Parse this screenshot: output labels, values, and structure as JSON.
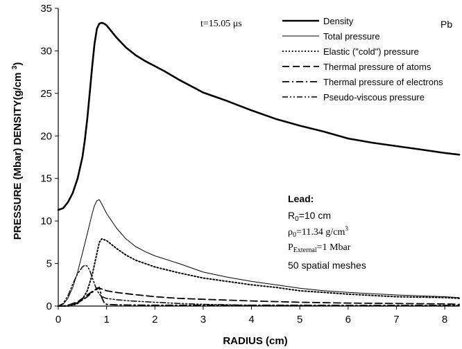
{
  "chart_data": {
    "type": "line",
    "xlabel": "RADIUS (cm)",
    "ylabel": "PRESSURE (Mbar) DENSITY(g/cm³)",
    "xlim": [
      0,
      8.3
    ],
    "ylim": [
      0,
      35
    ],
    "xticks": [
      0,
      1,
      2,
      3,
      4,
      5,
      6,
      7,
      8
    ],
    "yticks": [
      0,
      5,
      10,
      15,
      20,
      25,
      30,
      35
    ],
    "grid": false,
    "legend_position": "top-right",
    "series": [
      {
        "name": "Density",
        "style": "solid-thick",
        "x": [
          0,
          0.1,
          0.2,
          0.3,
          0.4,
          0.5,
          0.55,
          0.6,
          0.65,
          0.7,
          0.75,
          0.8,
          0.85,
          0.9,
          0.95,
          1.0,
          1.1,
          1.2,
          1.4,
          1.6,
          1.8,
          2.0,
          2.2,
          2.5,
          3.0,
          3.5,
          4.0,
          4.5,
          5.0,
          5.5,
          6.0,
          6.5,
          7.0,
          7.5,
          8.0,
          8.3
        ],
        "y": [
          11.3,
          11.5,
          12.2,
          13.3,
          15.0,
          17.5,
          19.5,
          22.0,
          25.0,
          28.0,
          30.8,
          32.6,
          33.2,
          33.3,
          33.2,
          33.0,
          32.3,
          31.6,
          30.4,
          29.5,
          28.8,
          28.2,
          27.6,
          26.6,
          25.1,
          24.1,
          23.0,
          22.0,
          21.2,
          20.5,
          19.7,
          19.2,
          18.8,
          18.4,
          18.0,
          17.8
        ]
      },
      {
        "name": "Total pressure",
        "style": "solid-thin",
        "x": [
          0,
          0.1,
          0.2,
          0.3,
          0.4,
          0.5,
          0.6,
          0.7,
          0.75,
          0.8,
          0.85,
          0.9,
          1.0,
          1.2,
          1.4,
          1.6,
          1.8,
          2.0,
          2.5,
          3.0,
          3.5,
          4.0,
          4.5,
          5.0,
          5.5,
          6.0,
          7.0,
          8.0,
          8.3
        ],
        "y": [
          0,
          0.2,
          0.9,
          2.2,
          4.0,
          6.2,
          8.5,
          10.8,
          11.8,
          12.4,
          12.5,
          12.0,
          10.9,
          9.2,
          7.9,
          7.0,
          6.4,
          5.9,
          5.0,
          4.0,
          3.4,
          2.9,
          2.5,
          2.1,
          1.8,
          1.6,
          1.3,
          1.1,
          1.0
        ]
      },
      {
        "name": "Elastic (\"cold\") pressure",
        "style": "dotted",
        "x": [
          0,
          0.1,
          0.2,
          0.3,
          0.4,
          0.5,
          0.6,
          0.7,
          0.8,
          0.85,
          0.9,
          1.0,
          1.2,
          1.4,
          1.6,
          1.8,
          2.0,
          2.5,
          3.0,
          3.5,
          4.0,
          4.5,
          5.0,
          5.5,
          6.0,
          7.0,
          8.0,
          8.3
        ],
        "y": [
          0,
          0,
          0,
          0.1,
          0.3,
          0.8,
          1.8,
          3.6,
          6.2,
          7.5,
          7.9,
          7.7,
          6.8,
          6.0,
          5.4,
          5.0,
          4.6,
          3.9,
          3.3,
          2.9,
          2.5,
          2.2,
          1.8,
          1.6,
          1.4,
          1.1,
          1.0,
          0.9
        ]
      },
      {
        "name": "Thermal pressure of atoms",
        "style": "dashed",
        "x": [
          0,
          0.1,
          0.2,
          0.3,
          0.4,
          0.5,
          0.6,
          0.7,
          0.8,
          0.85,
          0.9,
          1.0,
          1.2,
          1.5,
          2.0,
          2.5,
          3.0,
          4.0,
          5.0,
          6.0,
          7.0,
          8.0,
          8.3
        ],
        "y": [
          0,
          0,
          0.1,
          0.3,
          0.5,
          0.9,
          1.3,
          1.7,
          2.0,
          2.1,
          2.0,
          1.8,
          1.6,
          1.4,
          1.1,
          0.9,
          0.8,
          0.6,
          0.45,
          0.35,
          0.3,
          0.25,
          0.2
        ]
      },
      {
        "name": "Thermal pressure of electrons",
        "style": "dash-dot",
        "x": [
          0,
          0.1,
          0.2,
          0.3,
          0.4,
          0.5,
          0.6,
          0.7,
          0.8,
          0.85,
          0.9,
          0.95,
          1.0,
          1.2,
          1.5,
          2.0,
          3.0,
          4.0,
          5.0,
          6.0,
          7.0,
          8.0,
          8.3
        ],
        "y": [
          0,
          0,
          0.1,
          0.2,
          0.4,
          0.7,
          1.1,
          1.6,
          2.1,
          2.2,
          1.0,
          0.4,
          0.2,
          0.15,
          0.12,
          0.1,
          0.1,
          0.1,
          0.1,
          0.08,
          0.08,
          0.08,
          0.08
        ]
      },
      {
        "name": "Pseudo-viscous pressure",
        "style": "dash-dot-dot",
        "x": [
          0,
          0.1,
          0.2,
          0.3,
          0.4,
          0.5,
          0.55,
          0.6,
          0.65,
          0.7,
          0.75,
          0.8,
          0.85,
          0.9,
          1.0,
          1.2,
          1.5,
          2.0,
          2.5,
          3.0,
          4.0,
          5.0,
          6.0,
          8.0,
          8.3
        ],
        "y": [
          0,
          0.3,
          1.2,
          2.6,
          3.8,
          4.6,
          4.8,
          4.7,
          4.2,
          3.4,
          2.6,
          1.9,
          1.4,
          1.1,
          0.9,
          0.75,
          0.6,
          0.45,
          0.3,
          0.2,
          0.1,
          0.05,
          0.02,
          0.01,
          0.01
        ]
      }
    ],
    "annotations": {
      "time": "t=15.05 μs",
      "element": "Pb",
      "material_title": "Lead:",
      "r0": {
        "base": "R",
        "sub": "0",
        "rest": "=10 cm"
      },
      "rho0": {
        "base": "ρ",
        "sub": "0",
        "rest": "=11.34 g/cm",
        "sup": "3"
      },
      "pext": {
        "base": "P",
        "sub": "External",
        "rest": "=1 Mbar"
      },
      "meshes": "50 spatial meshes"
    }
  }
}
